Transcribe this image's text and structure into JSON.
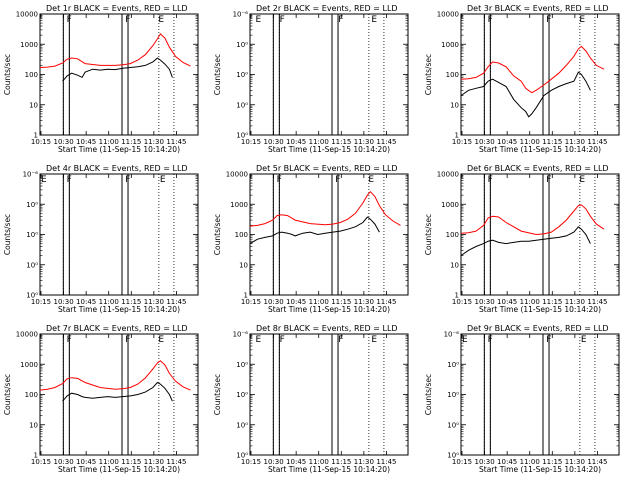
{
  "x_axis": {
    "label": "Start Time (11-Sep-15 10:14:20)",
    "tick_labels": [
      "10:15",
      "10:30",
      "10:45",
      "11:00",
      "11:15",
      "11:30",
      "11:45"
    ],
    "tick_minutes": [
      0.67,
      15.67,
      30.67,
      45.67,
      60.67,
      75.67,
      90.67
    ],
    "range_minutes": [
      0,
      105
    ]
  },
  "y_axis": {
    "label": "Counts/sec",
    "ticks_normal": [
      "1",
      "10",
      "100",
      "1000",
      "10000"
    ],
    "ticks_empty": [
      "10⁰",
      "10⁰",
      "10⁰",
      "10⁰",
      "10⁻⁶"
    ],
    "empty_note": "empty panels show degenerate exponent tick labels"
  },
  "colors": {
    "events": "#000000",
    "lld": "#ff0000",
    "axis": "#000000"
  },
  "panels": [
    {
      "title": "Det 1r BLACK = Events, RED = LLD",
      "empty": false,
      "flags": [
        {
          "t": 0,
          "label": ""
        },
        {
          "t": 17,
          "label": "F"
        },
        {
          "t": 56,
          "label": "F"
        },
        {
          "t": 78,
          "label": "E"
        }
      ],
      "attenuator_bands": [
        [
          15.5,
          19.5
        ],
        [
          54.5,
          58.5
        ]
      ],
      "dotted": [
        15.5,
        19.5,
        54.5,
        58.5,
        79,
        89
      ],
      "chart_data": {
        "type": "line",
        "yscale": "log",
        "ylim": [
          1,
          10000
        ],
        "series": [
          {
            "name": "RED = LLD",
            "color": "#ff0000",
            "x": [
              0,
              5,
              10,
              15,
              18,
              21,
              25,
              30,
              40,
              50,
              55,
              60,
              65,
              70,
              75,
              78,
              80,
              83,
              86,
              90,
              95,
              100
            ],
            "y": [
              170,
              175,
              190,
              240,
              320,
              350,
              330,
              230,
              200,
              200,
              210,
              230,
              300,
              450,
              900,
              1500,
              2200,
              1600,
              800,
              400,
              250,
              190
            ]
          },
          {
            "name": "BLACK = Events",
            "color": "#000000",
            "x": [
              15,
              18,
              21,
              25,
              28,
              30,
              35,
              40,
              45,
              50,
              55,
              60,
              65,
              70,
              75,
              78,
              80,
              83,
              86,
              88
            ],
            "y": [
              60,
              90,
              110,
              95,
              80,
              120,
              150,
              140,
              150,
              145,
              160,
              170,
              180,
              200,
              260,
              350,
              300,
              220,
              150,
              80
            ]
          }
        ]
      }
    },
    {
      "title": "Det 2r BLACK = Events, RED = LLD",
      "empty": true,
      "flags": [
        {
          "t": 3,
          "label": "E"
        },
        {
          "t": 19,
          "label": "F"
        },
        {
          "t": 58,
          "label": "F"
        },
        {
          "t": 80,
          "label": "E"
        }
      ],
      "attenuator_bands": [
        [
          15.5,
          19.5
        ],
        [
          54.5,
          58.5
        ]
      ],
      "dotted": [
        15.5,
        19.5,
        54.5,
        58.5,
        79,
        89
      ],
      "chart_data": {
        "type": "line",
        "yscale": "log",
        "ylim": [
          1,
          10000
        ],
        "series": []
      }
    },
    {
      "title": "Det 3r BLACK = Events, RED = LLD",
      "empty": false,
      "flags": [
        {
          "t": 0,
          "label": ""
        },
        {
          "t": 17,
          "label": "F"
        },
        {
          "t": 56,
          "label": "F"
        },
        {
          "t": 78,
          "label": "E"
        }
      ],
      "attenuator_bands": [
        [
          15.5,
          19.5
        ],
        [
          54.5,
          58.5
        ]
      ],
      "dotted": [
        15.5,
        19.5,
        54.5,
        58.5,
        79,
        89
      ],
      "chart_data": {
        "type": "line",
        "yscale": "log",
        "ylim": [
          1,
          10000
        ],
        "series": [
          {
            "name": "RED = LLD",
            "color": "#ff0000",
            "x": [
              0,
              5,
              10,
              15,
              18,
              21,
              25,
              30,
              35,
              40,
              43,
              47,
              50,
              55,
              60,
              65,
              70,
              75,
              78,
              80,
              83,
              86,
              90,
              95
            ],
            "y": [
              70,
              72,
              80,
              110,
              180,
              260,
              240,
              180,
              90,
              60,
              35,
              25,
              30,
              45,
              70,
              110,
              200,
              400,
              700,
              850,
              600,
              350,
              200,
              150
            ]
          },
          {
            "name": "BLACK = Events",
            "color": "#000000",
            "x": [
              0,
              5,
              10,
              15,
              18,
              21,
              25,
              30,
              35,
              40,
              43,
              45,
              47,
              50,
              55,
              60,
              65,
              70,
              75,
              78,
              80,
              83,
              86
            ],
            "y": [
              20,
              30,
              35,
              40,
              60,
              70,
              55,
              40,
              15,
              8,
              6,
              4,
              5,
              8,
              20,
              30,
              40,
              50,
              60,
              120,
              100,
              60,
              30
            ]
          }
        ]
      }
    },
    {
      "title": "Det 4r BLACK = Events, RED = LLD",
      "empty": true,
      "flags": [
        {
          "t": 0,
          "label": "E"
        },
        {
          "t": 17,
          "label": "F"
        },
        {
          "t": 56,
          "label": "F"
        },
        {
          "t": 79,
          "label": "E"
        }
      ],
      "attenuator_bands": [
        [
          15.5,
          19.5
        ],
        [
          54.5,
          58.5
        ]
      ],
      "dotted": [
        15.5,
        19.5,
        54.5,
        58.5,
        79,
        89
      ],
      "chart_data": {
        "type": "line",
        "yscale": "log",
        "ylim": [
          1,
          10000
        ],
        "series": []
      }
    },
    {
      "title": "Det 5r BLACK = Events, RED = LLD",
      "empty": false,
      "flags": [
        {
          "t": 0,
          "label": ""
        },
        {
          "t": 17,
          "label": "F"
        },
        {
          "t": 56,
          "label": "F"
        },
        {
          "t": 78,
          "label": "E"
        }
      ],
      "attenuator_bands": [
        [
          15.5,
          19.5
        ],
        [
          54.5,
          58.5
        ]
      ],
      "dotted": [
        15.5,
        19.5,
        54.5,
        58.5,
        79,
        89
      ],
      "chart_data": {
        "type": "line",
        "yscale": "log",
        "ylim": [
          1,
          10000
        ],
        "series": [
          {
            "name": "RED = LLD",
            "color": "#ff0000",
            "x": [
              0,
              5,
              10,
              15,
              18,
              21,
              25,
              30,
              40,
              50,
              55,
              60,
              65,
              70,
              75,
              78,
              80,
              83,
              86,
              90,
              95,
              100
            ],
            "y": [
              190,
              200,
              230,
              300,
              420,
              450,
              420,
              300,
              230,
              210,
              220,
              250,
              320,
              500,
              1100,
              2000,
              2600,
              1800,
              900,
              450,
              280,
              200
            ]
          },
          {
            "name": "BLACK = Events",
            "color": "#000000",
            "x": [
              0,
              5,
              10,
              15,
              18,
              21,
              25,
              28,
              30,
              35,
              40,
              45,
              50,
              55,
              60,
              65,
              70,
              75,
              78,
              80,
              83,
              86
            ],
            "y": [
              50,
              70,
              80,
              90,
              110,
              120,
              110,
              100,
              90,
              110,
              120,
              100,
              110,
              120,
              130,
              150,
              180,
              250,
              380,
              320,
              220,
              120
            ]
          }
        ]
      }
    },
    {
      "title": "Det 6r BLACK = Events, RED = LLD",
      "empty": false,
      "flags": [
        {
          "t": 0,
          "label": ""
        },
        {
          "t": 17,
          "label": "F"
        },
        {
          "t": 56,
          "label": "F"
        },
        {
          "t": 78,
          "label": "E"
        }
      ],
      "attenuator_bands": [
        [
          15.5,
          19.5
        ],
        [
          54.5,
          58.5
        ]
      ],
      "dotted": [
        15.5,
        19.5,
        54.5,
        58.5,
        79,
        89
      ],
      "chart_data": {
        "type": "line",
        "yscale": "log",
        "ylim": [
          1,
          10000
        ],
        "series": [
          {
            "name": "RED = LLD",
            "color": "#ff0000",
            "x": [
              0,
              5,
              10,
              15,
              18,
              21,
              25,
              30,
              40,
              50,
              55,
              60,
              65,
              70,
              75,
              78,
              80,
              83,
              86,
              90,
              95
            ],
            "y": [
              110,
              115,
              130,
              200,
              350,
              400,
              380,
              250,
              130,
              100,
              105,
              120,
              180,
              300,
              600,
              900,
              950,
              700,
              400,
              220,
              150
            ]
          },
          {
            "name": "BLACK = Events",
            "color": "#000000",
            "x": [
              0,
              5,
              10,
              15,
              18,
              21,
              25,
              30,
              35,
              40,
              45,
              50,
              55,
              60,
              65,
              70,
              75,
              78,
              80,
              83,
              86
            ],
            "y": [
              20,
              30,
              40,
              50,
              60,
              65,
              55,
              50,
              55,
              60,
              60,
              65,
              70,
              75,
              80,
              90,
              120,
              180,
              150,
              100,
              50
            ]
          }
        ]
      }
    },
    {
      "title": "Det 7r BLACK = Events, RED = LLD",
      "empty": false,
      "flags": [
        {
          "t": 0,
          "label": ""
        },
        {
          "t": 17,
          "label": "F"
        },
        {
          "t": 56,
          "label": "F"
        },
        {
          "t": 78,
          "label": "E"
        }
      ],
      "attenuator_bands": [
        [
          15.5,
          19.5
        ],
        [
          54.5,
          58.5
        ]
      ],
      "dotted": [
        15.5,
        19.5,
        54.5,
        58.5,
        79,
        89
      ],
      "chart_data": {
        "type": "line",
        "yscale": "log",
        "ylim": [
          1,
          10000
        ],
        "series": [
          {
            "name": "RED = LLD",
            "color": "#ff0000",
            "x": [
              0,
              5,
              10,
              15,
              18,
              21,
              25,
              30,
              40,
              50,
              55,
              60,
              65,
              70,
              75,
              78,
              80,
              83,
              86,
              90,
              95,
              100
            ],
            "y": [
              140,
              150,
              170,
              230,
              330,
              360,
              340,
              250,
              170,
              150,
              155,
              170,
              220,
              350,
              700,
              1100,
              1300,
              950,
              500,
              280,
              180,
              140
            ]
          },
          {
            "name": "BLACK = Events",
            "color": "#000000",
            "x": [
              15,
              18,
              21,
              25,
              28,
              30,
              35,
              40,
              45,
              50,
              55,
              60,
              65,
              70,
              75,
              78,
              80,
              83,
              86,
              88
            ],
            "y": [
              60,
              90,
              110,
              100,
              85,
              80,
              75,
              80,
              85,
              80,
              85,
              90,
              100,
              120,
              170,
              250,
              220,
              160,
              100,
              60
            ]
          }
        ]
      }
    },
    {
      "title": "Det 8r BLACK = Events, RED = LLD",
      "empty": true,
      "flags": [
        {
          "t": 3,
          "label": "E"
        },
        {
          "t": 19,
          "label": "F"
        },
        {
          "t": 58,
          "label": "F"
        },
        {
          "t": 80,
          "label": "E"
        }
      ],
      "attenuator_bands": [
        [
          15.5,
          19.5
        ],
        [
          54.5,
          58.5
        ]
      ],
      "dotted": [
        15.5,
        19.5,
        54.5,
        58.5,
        79,
        89
      ],
      "chart_data": {
        "type": "line",
        "yscale": "log",
        "ylim": [
          1,
          10000
        ],
        "series": []
      }
    },
    {
      "title": "Det 9r BLACK = Events, RED = LLD",
      "empty": true,
      "flags": [
        {
          "t": 0,
          "label": "E"
        },
        {
          "t": 17,
          "label": "F"
        },
        {
          "t": 56,
          "label": "F"
        },
        {
          "t": 79,
          "label": "E"
        }
      ],
      "attenuator_bands": [
        [
          15.5,
          19.5
        ],
        [
          54.5,
          58.5
        ]
      ],
      "dotted": [
        15.5,
        19.5,
        54.5,
        58.5,
        79,
        89
      ],
      "chart_data": {
        "type": "line",
        "yscale": "log",
        "ylim": [
          1,
          10000
        ],
        "series": []
      }
    }
  ]
}
